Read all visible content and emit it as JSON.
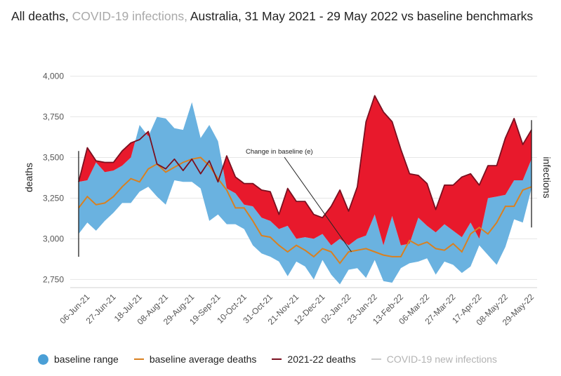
{
  "title": {
    "part1": "All deaths, ",
    "part2": "COVID-19 infections, ",
    "part3": "Australia, 31 May 2021 - 29 May 2022 vs baseline benchmarks"
  },
  "colors": {
    "baseline_range": "#6ab2e0",
    "baseline_average": "#d98020",
    "deaths_line": "#7a1020",
    "excess_fill": "#e8192c",
    "infections": "#cccccc"
  },
  "chart_data": {
    "type": "area",
    "title": "All deaths, COVID-19 infections, Australia, 31 May 2021 - 29 May 2022 vs baseline benchmarks",
    "ylabel": "deaths",
    "y2label": "infections",
    "ylim": [
      2700,
      4050
    ],
    "yticks": [
      2750,
      3000,
      3250,
      3500,
      3750,
      4000
    ],
    "ytick_labels": [
      "2,750",
      "3,000",
      "3,250",
      "3,500",
      "3,750",
      "4,000"
    ],
    "x_labels": [
      "06-Jun-21",
      "27-Jun-21",
      "18-Jul-21",
      "08-Aug-21",
      "29-Aug-21",
      "19-Sep-21",
      "10-Oct-21",
      "31-Oct-21",
      "21-Nov-21",
      "12-Dec-21",
      "02-Jan-22",
      "23-Jan-22",
      "13-Feb-22",
      "06-Mar-22",
      "27-Mar-22",
      "17-Apr-22",
      "08-May-22",
      "29-May-22"
    ],
    "x_weeks": [
      "31-May-21",
      "06-Jun-21",
      "13-Jun-21",
      "20-Jun-21",
      "27-Jun-21",
      "04-Jul-21",
      "11-Jul-21",
      "18-Jul-21",
      "25-Jul-21",
      "01-Aug-21",
      "08-Aug-21",
      "15-Aug-21",
      "22-Aug-21",
      "29-Aug-21",
      "05-Sep-21",
      "12-Sep-21",
      "19-Sep-21",
      "26-Sep-21",
      "03-Oct-21",
      "10-Oct-21",
      "17-Oct-21",
      "24-Oct-21",
      "31-Oct-21",
      "07-Nov-21",
      "14-Nov-21",
      "21-Nov-21",
      "28-Nov-21",
      "05-Dec-21",
      "12-Dec-21",
      "19-Dec-21",
      "26-Dec-21",
      "02-Jan-22",
      "09-Jan-22",
      "16-Jan-22",
      "23-Jan-22",
      "30-Jan-22",
      "06-Feb-22",
      "13-Feb-22",
      "20-Feb-22",
      "27-Feb-22",
      "06-Mar-22",
      "13-Mar-22",
      "20-Mar-22",
      "27-Mar-22",
      "03-Apr-22",
      "10-Apr-22",
      "17-Apr-22",
      "24-Apr-22",
      "01-May-22",
      "08-May-22",
      "15-May-22",
      "22-May-22",
      "29-May-22"
    ],
    "series": [
      {
        "name": "baseline range",
        "type": "band",
        "upper": [
          3350,
          3360,
          3470,
          3410,
          3420,
          3450,
          3500,
          3700,
          3630,
          3750,
          3740,
          3680,
          3670,
          3840,
          3620,
          3700,
          3600,
          3310,
          3280,
          3210,
          3200,
          3130,
          3110,
          3060,
          3080,
          3000,
          3010,
          3000,
          3030,
          2960,
          3000,
          2960,
          3000,
          3020,
          3150,
          2960,
          3140,
          2960,
          2970,
          3130,
          3080,
          3040,
          3090,
          3050,
          3010,
          3100,
          3000,
          3250,
          3260,
          3270,
          3360,
          3360,
          3490
        ],
        "lower": [
          3030,
          3100,
          3050,
          3110,
          3160,
          3220,
          3220,
          3290,
          3320,
          3260,
          3210,
          3360,
          3350,
          3350,
          3310,
          3110,
          3150,
          3090,
          3090,
          3060,
          2960,
          2910,
          2890,
          2860,
          2770,
          2860,
          2830,
          2750,
          2870,
          2780,
          2720,
          2810,
          2820,
          2760,
          2870,
          2740,
          2730,
          2820,
          2850,
          2860,
          2880,
          2780,
          2860,
          2840,
          2790,
          2830,
          2960,
          2900,
          2840,
          2950,
          3120,
          3100,
          3310
        ]
      },
      {
        "name": "baseline average deaths",
        "type": "line",
        "values": [
          3190,
          3260,
          3210,
          3220,
          3260,
          3320,
          3370,
          3350,
          3430,
          3460,
          3410,
          3440,
          3470,
          3490,
          3500,
          3450,
          3370,
          3300,
          3190,
          3190,
          3110,
          3020,
          3010,
          2960,
          2920,
          2960,
          2930,
          2890,
          2940,
          2920,
          2850,
          2920,
          2930,
          2940,
          2920,
          2900,
          2890,
          2890,
          2990,
          2960,
          2980,
          2940,
          2930,
          2970,
          2920,
          3030,
          3070,
          3030,
          3100,
          3200,
          3200,
          3300,
          3320
        ]
      },
      {
        "name": "2021-22 deaths",
        "type": "line",
        "values": [
          3350,
          3560,
          3480,
          3470,
          3470,
          3540,
          3590,
          3610,
          3660,
          3460,
          3430,
          3490,
          3420,
          3490,
          3400,
          3480,
          3350,
          3510,
          3380,
          3340,
          3340,
          3300,
          3290,
          3150,
          3310,
          3230,
          3230,
          3150,
          3130,
          3200,
          3300,
          3170,
          3320,
          3720,
          3880,
          3780,
          3720,
          3550,
          3400,
          3390,
          3340,
          3180,
          3330,
          3330,
          3380,
          3400,
          3330,
          3450,
          3450,
          3620,
          3740,
          3580,
          3670
        ]
      },
      {
        "name": "COVID-19 new infections",
        "type": "line",
        "values": []
      }
    ],
    "annotation": "Change in baseline (e)",
    "legend": [
      "baseline range",
      "baseline average deaths",
      "2021-22 deaths",
      "COVID-19 new infections"
    ],
    "legend_position": "bottom",
    "grid": true
  }
}
